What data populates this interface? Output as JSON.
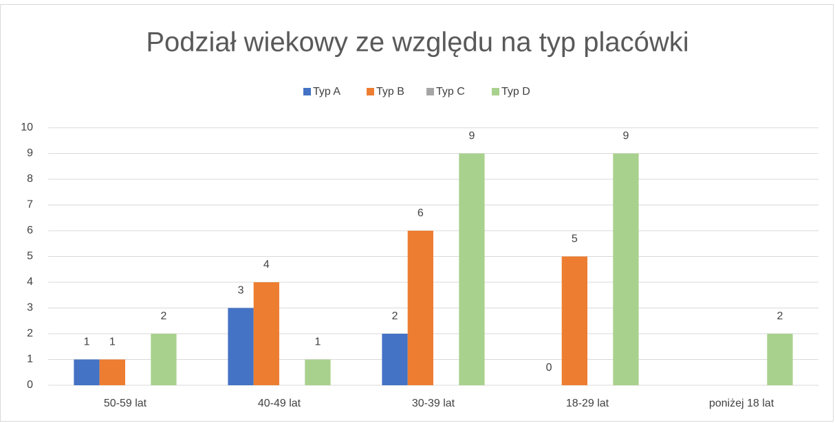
{
  "chart_data": {
    "type": "bar",
    "title": "Podział wiekowy ze względu na typ placówki",
    "categories": [
      "50-59 lat",
      "40-49 lat",
      "30-39 lat",
      "18-29 lat",
      "poniżej 18 lat"
    ],
    "series": [
      {
        "name": "Typ A",
        "color": "#4472c4",
        "values": [
          1,
          3,
          2,
          0,
          null
        ]
      },
      {
        "name": "Typ B",
        "color": "#ed7d31",
        "values": [
          1,
          4,
          6,
          5,
          null
        ]
      },
      {
        "name": "Typ C",
        "color": "#a5a5a5",
        "values": [
          null,
          null,
          null,
          null,
          null
        ]
      },
      {
        "name": "Typ D",
        "color": "#a9d18e",
        "values": [
          2,
          1,
          9,
          9,
          2
        ]
      }
    ],
    "ylim": [
      0,
      10
    ],
    "yticks": [
      0,
      1,
      2,
      3,
      4,
      5,
      6,
      7,
      8,
      9,
      10
    ],
    "grid": true,
    "legend": "top"
  }
}
